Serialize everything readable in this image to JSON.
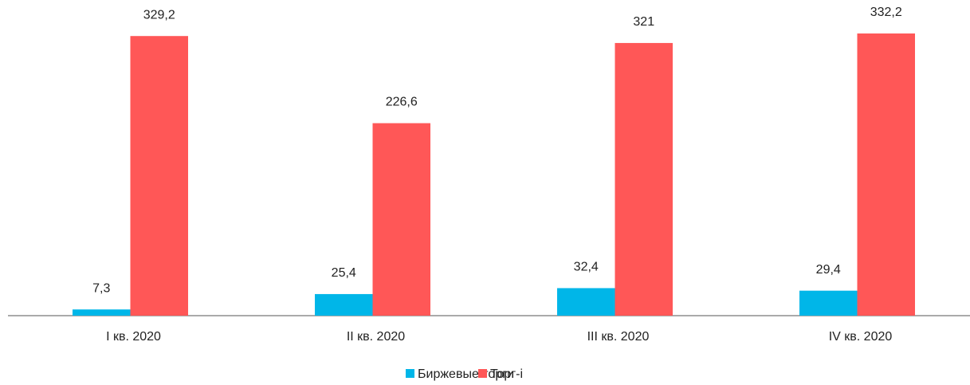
{
  "chart_data": {
    "type": "bar",
    "categories": [
      "I кв. 2020",
      "II кв. 2020",
      "III кв. 2020",
      "IV кв. 2020"
    ],
    "series": [
      {
        "name": "Биржевые торги",
        "color": "#00b6e8",
        "values": [
          7.3,
          25.4,
          32.4,
          29.4
        ],
        "value_labels": [
          "7,3",
          "25,4",
          "32,4",
          "29,4"
        ]
      },
      {
        "name": "Торг-i",
        "color": "#ff5757",
        "values": [
          329.2,
          226.6,
          321,
          332.2
        ],
        "value_labels": [
          "329,2",
          "226,6",
          "321",
          "332,2"
        ]
      }
    ]
  }
}
